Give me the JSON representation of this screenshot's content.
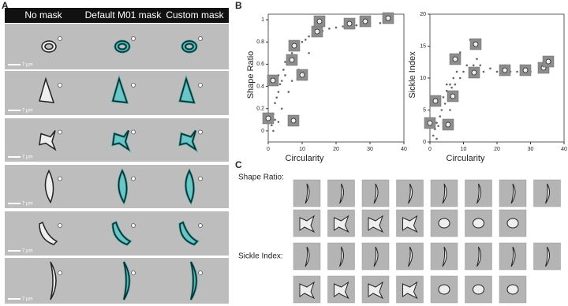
{
  "panel_labels": [
    "A",
    "B",
    "C"
  ],
  "panel_a": {
    "columns": [
      "No mask",
      "Default M01 mask",
      "Custom mask"
    ],
    "scale_bar": "7 µm"
  },
  "chart_data": [
    {
      "type": "scatter",
      "x_label": "Circularity",
      "y_label": "Shape Ratio",
      "color": "#666666",
      "xlim": [
        0,
        40
      ],
      "xticks": [
        0,
        10,
        20,
        30,
        40
      ],
      "ylim": [
        -0.1,
        1.05
      ],
      "yticks": [
        0,
        0.2,
        0.4,
        0.6,
        0.8,
        1
      ],
      "x": [
        1,
        1.5,
        2,
        2.5,
        3,
        3,
        3.5,
        4,
        4.5,
        5,
        5,
        5.5,
        6,
        6.5,
        7,
        7.5,
        8,
        9,
        10,
        11,
        12,
        13,
        14,
        15,
        16,
        18,
        20,
        22,
        24,
        26,
        28,
        30,
        33,
        36,
        2,
        4,
        6,
        9,
        12,
        1.5,
        3,
        7
      ],
      "values": [
        0.05,
        0.15,
        0.25,
        0.3,
        0.35,
        0.5,
        0.42,
        0.45,
        0.55,
        0.5,
        0.62,
        0.6,
        0.65,
        0.6,
        0.7,
        0.68,
        0.75,
        0.78,
        0.8,
        0.82,
        0.85,
        0.86,
        0.88,
        0.9,
        0.9,
        0.92,
        0.93,
        0.94,
        0.95,
        0.95,
        0.96,
        0.97,
        0.97,
        0.98,
        0.1,
        0.2,
        0.35,
        0.55,
        0.7,
        0.0,
        0.08,
        0.45
      ]
    },
    {
      "type": "scatter",
      "x_label": "Circularity",
      "y_label": "Sickle Index",
      "color": "#666666",
      "xlim": [
        0,
        40
      ],
      "xticks": [
        0,
        10,
        20,
        30,
        40
      ],
      "ylim": [
        0,
        20
      ],
      "yticks": [
        0,
        5,
        10,
        15,
        20
      ],
      "x": [
        1,
        1.5,
        2,
        2.5,
        3,
        3,
        3.5,
        4,
        4.5,
        5,
        5,
        5.5,
        6,
        6.5,
        7,
        7.5,
        8,
        9,
        10,
        11,
        12,
        13,
        14,
        15,
        16,
        18,
        20,
        22,
        24,
        26,
        28,
        30,
        33,
        36,
        2,
        4,
        6,
        9,
        12,
        14,
        8
      ],
      "values": [
        1,
        2,
        3,
        2.5,
        4,
        6,
        5,
        7,
        6,
        8,
        9,
        7.5,
        9,
        8.5,
        10,
        9,
        11,
        10,
        11,
        12,
        11,
        12,
        13,
        12,
        11,
        11.5,
        11,
        10.5,
        11,
        11,
        11.5,
        11,
        11.5,
        12,
        0.5,
        3,
        5,
        14,
        16,
        15,
        13
      ]
    }
  ],
  "panel_c": {
    "row_labels": [
      "Shape Ratio:",
      "Sickle Index:"
    ]
  }
}
